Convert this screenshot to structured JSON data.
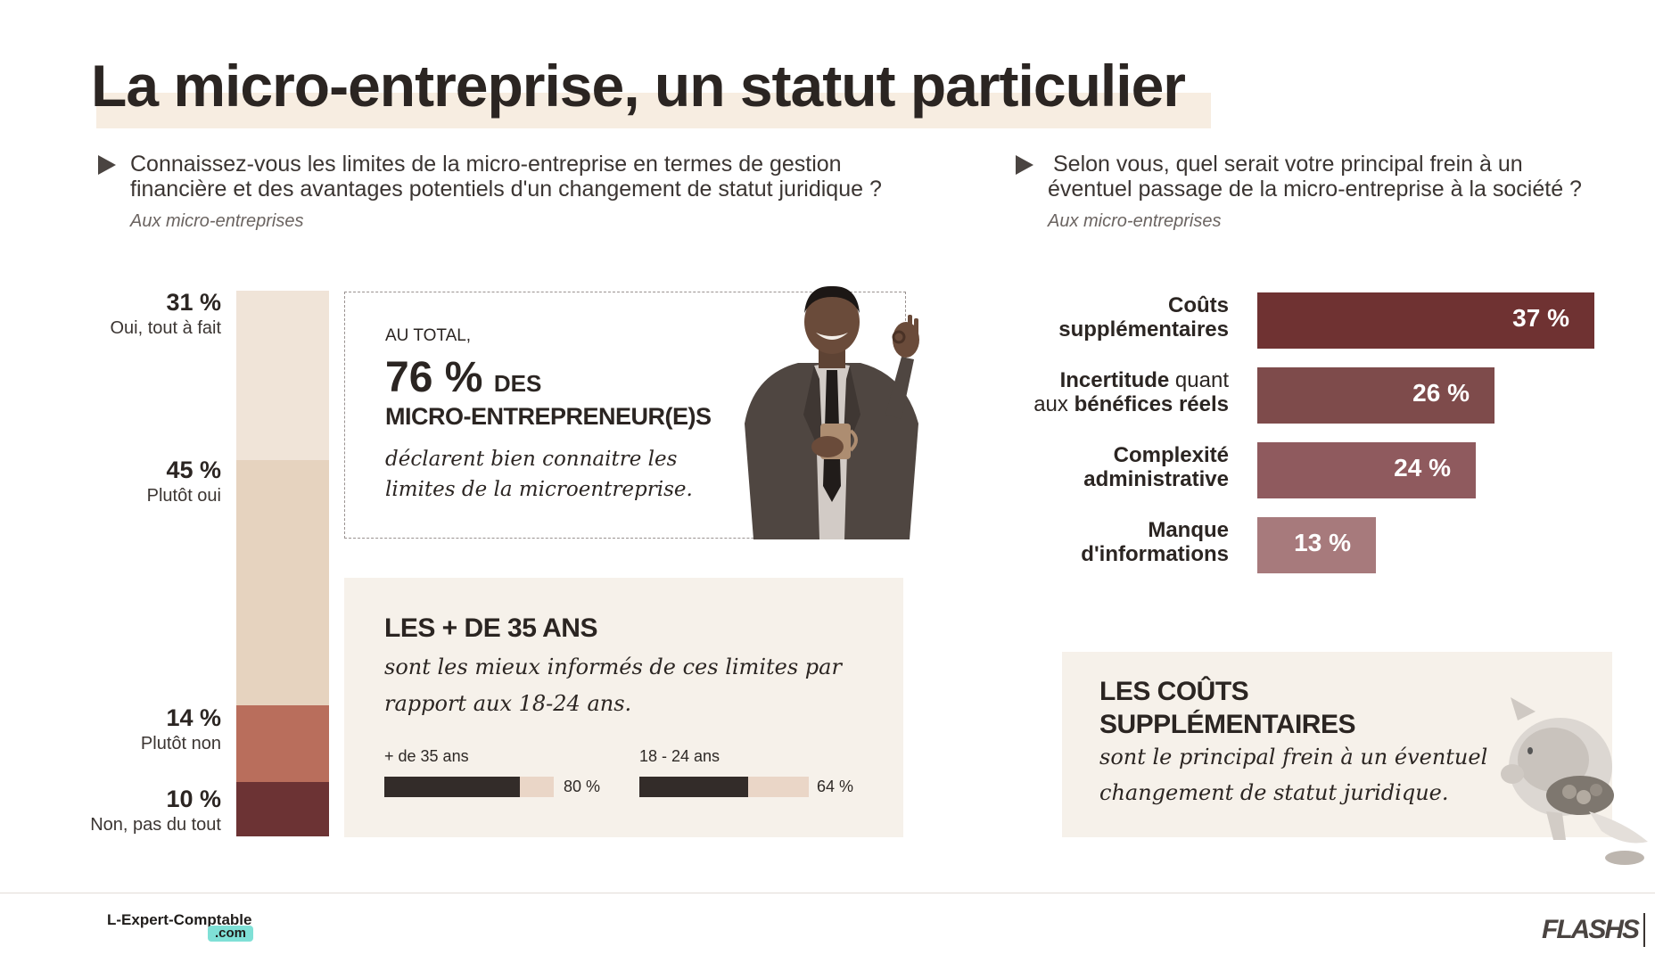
{
  "title": "La micro-entreprise, un statut particulier",
  "left_question": {
    "line1": "Connaissez-vous les limites de la micro-entreprise en termes de gestion",
    "line2": "financière et des avantages potentiels d'un changement de statut juridique ?",
    "source": "Aux micro-entreprises"
  },
  "right_question": {
    "line1": "Selon vous, quel serait votre principal frein à un",
    "line2": "éventuel passage de la micro-entreprise à la société ?",
    "source": "Aux micro-entreprises"
  },
  "total_box": {
    "intro": "AU TOTAL,",
    "big_pct": "76 %",
    "des": "DES",
    "who": "MICRO-ENTREPRENEUR(E)S",
    "line1": "déclarent bien connaitre les",
    "line2": "limites de la microentreprise."
  },
  "age_box": {
    "heading": "LES + DE 35 ANS",
    "line1": "sont les mieux informés de ces limites par",
    "line2": "rapport aux 18-24 ans.",
    "groups": [
      {
        "label": "+ de 35 ans",
        "value_label": "80 %",
        "value": 80
      },
      {
        "label": "18 - 24 ans",
        "value_label": "64 %",
        "value": 64
      }
    ]
  },
  "cost_box": {
    "heading1": "LES COÛTS",
    "heading2": "SUPPLÉMENTAIRES",
    "line1": "sont le principal frein à un éventuel",
    "line2": "changement de statut juridique."
  },
  "footer": {
    "brand": "L-Expert-Comptable",
    "brand_suffix": ".com",
    "right_logo": "FLASHS"
  },
  "colors": {
    "dark_red": "#6f3232",
    "mid_red": "#7e4b4b",
    "rose": "#8f5a5e",
    "pink": "#a77a7c",
    "beige_light": "#f0e4d8",
    "beige_mid": "#e6d3bf",
    "terracotta": "#b96e5c",
    "wine": "#6c3334"
  },
  "chart_data": [
    {
      "type": "bar",
      "stacked": true,
      "unit": "%",
      "categories": [
        "Oui, tout à fait",
        "Plutôt oui",
        "Plutôt non",
        "Non, pas du tout"
      ],
      "values": [
        31,
        45,
        14,
        10
      ],
      "labels": [
        "31 %",
        "45 %",
        "14 %",
        "10 %"
      ]
    },
    {
      "type": "bar",
      "orientation": "horizontal",
      "unit": "%",
      "categories": [
        [
          "Coûts",
          "supplémentaires"
        ],
        [
          "Incertitude quant",
          "aux bénéfices réels"
        ],
        [
          "Complexité",
          "administrative"
        ],
        [
          "Manque",
          "d'informations"
        ]
      ],
      "values": [
        37,
        26,
        24,
        13
      ],
      "labels": [
        "37 %",
        "26 %",
        "24 %",
        "13 %"
      ]
    }
  ]
}
